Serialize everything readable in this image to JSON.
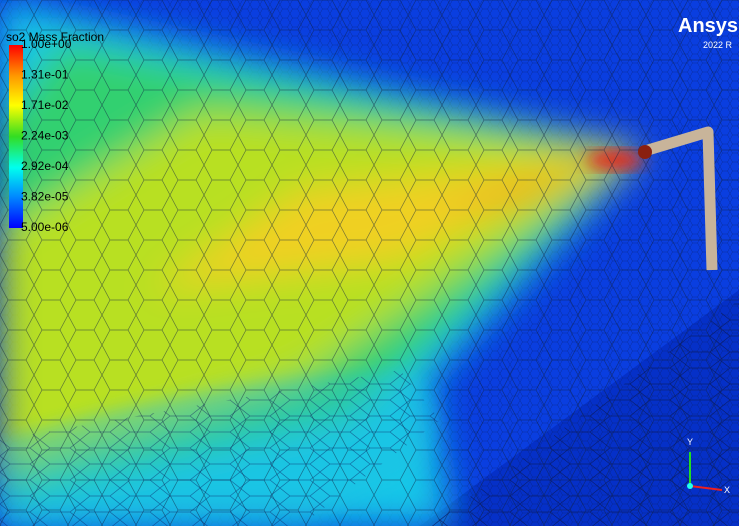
{
  "legend": {
    "title": "so2 Mass Fraction",
    "labels": [
      "1.00e+00",
      "1.31e-01",
      "1.71e-02",
      "2.24e-03",
      "2.92e-04",
      "3.82e-05",
      "5.00e-06"
    ]
  },
  "logo": {
    "brand": "Ansys",
    "version": "2022 R"
  },
  "triad": {
    "y": "Y",
    "x": "X"
  }
}
